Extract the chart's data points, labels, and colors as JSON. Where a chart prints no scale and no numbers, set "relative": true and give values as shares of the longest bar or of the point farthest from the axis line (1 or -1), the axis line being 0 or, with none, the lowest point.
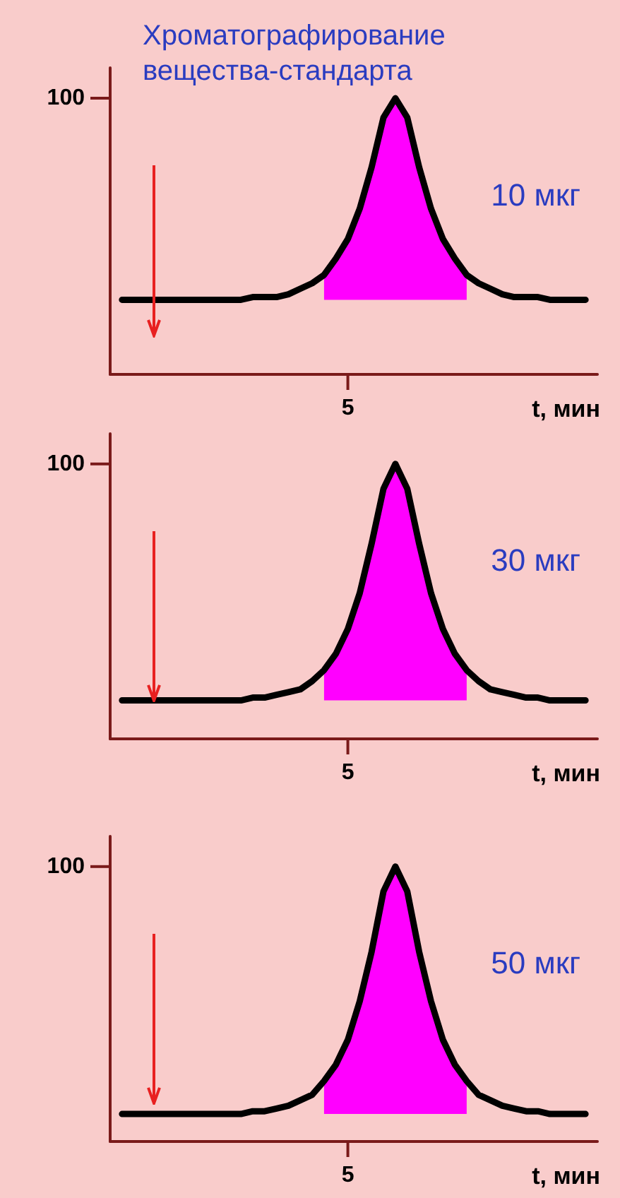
{
  "chart_data": [
    {
      "type": "line",
      "relative": true,
      "title": "Хроматографирование\nвещества-стандарта",
      "xlabel": "t, мин",
      "annotations": [
        "10 мкг",
        "100",
        "5"
      ],
      "grid": false,
      "marker": "none",
      "categories": [
        null,
        null,
        null,
        null,
        null,
        null,
        null,
        null,
        null,
        null,
        null,
        null,
        null,
        null,
        null,
        null,
        null,
        null,
        null,
        null,
        null,
        null,
        null,
        null,
        null,
        null,
        null,
        null,
        null,
        null,
        null,
        null,
        null,
        null,
        null,
        null,
        null,
        null,
        null,
        null,
        null,
        null
      ],
      "series": [
        {
          "color": "#000000",
          "values": [
            null,
            0.27,
            0.27,
            0.27,
            0.27,
            0.27,
            0.27,
            0.27,
            0.27,
            0.27,
            0.27,
            0.27,
            0.28,
            0.28,
            0.28,
            0.29,
            0.31,
            0.33,
            0.36,
            0.42,
            0.49,
            0.6,
            0.75,
            0.93,
            1,
            0.93,
            0.75,
            0.6,
            0.49,
            0.42,
            0.36,
            0.33,
            0.31,
            0.29,
            0.28,
            0.28,
            0.28,
            0.27,
            0.27,
            0.27,
            0.27,
            null
          ],
          "lower": [
            null,
            null,
            null,
            null,
            null,
            null,
            null,
            null,
            null,
            null,
            null,
            null,
            null,
            null,
            null,
            null,
            null,
            null,
            0.27,
            0.27,
            0.27,
            0.27,
            0.27,
            0.27,
            0.27,
            0.27,
            0.27,
            0.27,
            0.27,
            0.27,
            0.27,
            null,
            null,
            null,
            null,
            null,
            null,
            null,
            null,
            null,
            null,
            null
          ],
          "upper": [
            null,
            null,
            null,
            null,
            null,
            null,
            null,
            null,
            null,
            null,
            null,
            null,
            null,
            null,
            null,
            null,
            null,
            null,
            0.36,
            0.42,
            0.49,
            0.6,
            0.75,
            0.93,
            1,
            0.93,
            0.75,
            0.6,
            0.49,
            0.42,
            0.36,
            null,
            null,
            null,
            null,
            null,
            null,
            null,
            null,
            null,
            null,
            null
          ]
        }
      ]
    },
    {
      "type": "line",
      "relative": true,
      "xlabel": "t, мин",
      "annotations": [
        "30 мкг",
        "100",
        "5"
      ],
      "grid": false,
      "marker": "none",
      "categories": [
        null,
        null,
        null,
        null,
        null,
        null,
        null,
        null,
        null,
        null,
        null,
        null,
        null,
        null,
        null,
        null,
        null,
        null,
        null,
        null,
        null,
        null,
        null,
        null,
        null,
        null,
        null,
        null,
        null,
        null,
        null,
        null,
        null,
        null,
        null,
        null,
        null,
        null,
        null,
        null,
        null,
        null
      ],
      "series": [
        {
          "color": "#000000",
          "values": [
            null,
            0.14,
            0.14,
            0.14,
            0.14,
            0.14,
            0.14,
            0.14,
            0.14,
            0.14,
            0.14,
            0.14,
            0.15,
            0.15,
            0.16,
            0.17,
            0.18,
            0.21,
            0.25,
            0.31,
            0.4,
            0.53,
            0.71,
            0.91,
            1,
            0.91,
            0.71,
            0.53,
            0.4,
            0.31,
            0.25,
            0.21,
            0.18,
            0.17,
            0.16,
            0.15,
            0.15,
            0.14,
            0.14,
            0.14,
            0.14,
            null
          ],
          "lower": [
            null,
            null,
            null,
            null,
            null,
            null,
            null,
            null,
            null,
            null,
            null,
            null,
            null,
            null,
            null,
            null,
            null,
            null,
            0.14,
            0.14,
            0.14,
            0.14,
            0.14,
            0.14,
            0.14,
            0.14,
            0.14,
            0.14,
            0.14,
            0.14,
            0.14,
            null,
            null,
            null,
            null,
            null,
            null,
            null,
            null,
            null,
            null,
            null
          ],
          "upper": [
            null,
            null,
            null,
            null,
            null,
            null,
            null,
            null,
            null,
            null,
            null,
            null,
            null,
            null,
            null,
            null,
            null,
            null,
            0.25,
            0.31,
            0.4,
            0.53,
            0.71,
            0.91,
            1,
            0.91,
            0.71,
            0.53,
            0.4,
            0.31,
            0.25,
            null,
            null,
            null,
            null,
            null,
            null,
            null,
            null,
            null,
            null,
            null
          ]
        }
      ]
    },
    {
      "type": "line",
      "relative": true,
      "xlabel": "t, мин",
      "annotations": [
        "50 мкг",
        "100",
        "5"
      ],
      "grid": false,
      "marker": "none",
      "categories": [
        null,
        null,
        null,
        null,
        null,
        null,
        null,
        null,
        null,
        null,
        null,
        null,
        null,
        null,
        null,
        null,
        null,
        null,
        null,
        null,
        null,
        null,
        null,
        null,
        null,
        null,
        null,
        null,
        null,
        null,
        null,
        null,
        null,
        null,
        null,
        null,
        null,
        null,
        null,
        null,
        null,
        null
      ],
      "series": [
        {
          "color": "#000000",
          "values": [
            null,
            0.1,
            0.1,
            0.1,
            0.1,
            0.1,
            0.1,
            0.1,
            0.1,
            0.1,
            0.1,
            0.1,
            0.11,
            0.11,
            0.12,
            0.13,
            0.15,
            0.17,
            0.22,
            0.28,
            0.37,
            0.51,
            0.69,
            0.91,
            1,
            0.91,
            0.69,
            0.51,
            0.37,
            0.28,
            0.22,
            0.17,
            0.15,
            0.13,
            0.12,
            0.11,
            0.11,
            0.1,
            0.1,
            0.1,
            0.1,
            null
          ],
          "lower": [
            null,
            null,
            null,
            null,
            null,
            null,
            null,
            null,
            null,
            null,
            null,
            null,
            null,
            null,
            null,
            null,
            null,
            null,
            0.1,
            0.1,
            0.1,
            0.1,
            0.1,
            0.1,
            0.1,
            0.1,
            0.1,
            0.1,
            0.1,
            0.1,
            0.1,
            null,
            null,
            null,
            null,
            null,
            null,
            null,
            null,
            null,
            null,
            null
          ],
          "upper": [
            null,
            null,
            null,
            null,
            null,
            null,
            null,
            null,
            null,
            null,
            null,
            null,
            null,
            null,
            null,
            null,
            null,
            null,
            0.22,
            0.28,
            0.37,
            0.51,
            0.69,
            0.91,
            1,
            0.91,
            0.69,
            0.51,
            0.37,
            0.28,
            0.22,
            null,
            null,
            null,
            null,
            null,
            null,
            null,
            null,
            null,
            null,
            null
          ]
        }
      ]
    }
  ]
}
